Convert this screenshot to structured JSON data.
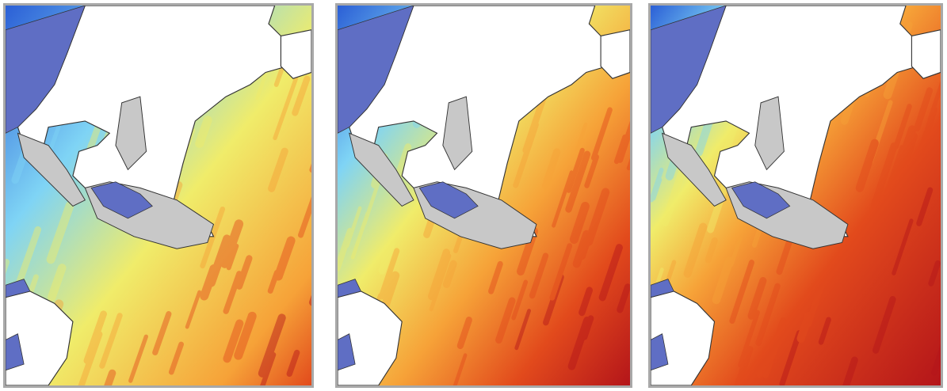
{
  "figure": {
    "panel_count": 3,
    "panels": [
      {
        "id": "left",
        "relative_intensity": 0.55
      },
      {
        "id": "middle",
        "relative_intensity": 0.78
      },
      {
        "id": "right",
        "relative_intensity": 0.92
      }
    ]
  },
  "colors": {
    "land": "#ffffff",
    "structure": "#c8c8c8",
    "jetty": "#5f6ec4",
    "outline": "#333333",
    "border": "#a8a8a8",
    "low": "#2b5fd6",
    "mid_low": "#7fd4f5",
    "mid": "#f0ec6a",
    "mid_high": "#f6a238",
    "high": "#e24a1c",
    "max": "#b4151a"
  }
}
